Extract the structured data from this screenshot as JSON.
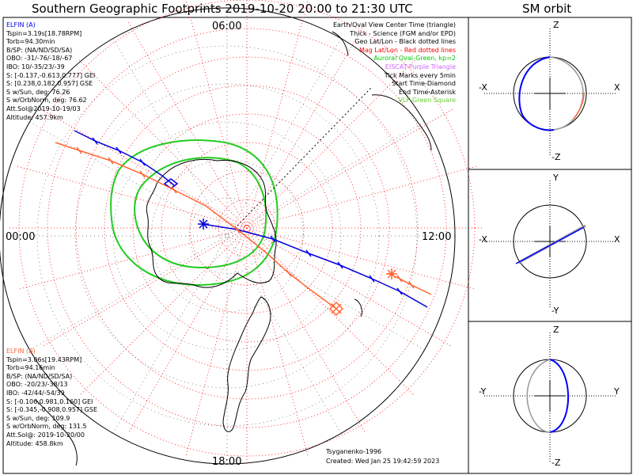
{
  "header": {
    "title": "Southern Geographic Footprints 2019-10-20 20:00 to 21:30 UTC",
    "orbit_title": "SM orbit"
  },
  "map": {
    "hour_labels": {
      "top": "06:00",
      "left": "00:00",
      "right": "12:00",
      "bottom": "18:00"
    }
  },
  "legend": {
    "lines": [
      {
        "text": "Earth/Oval View Center Time (triangle)",
        "color": "#000000"
      },
      {
        "text": "Thick - Science (FGM and/or EPD)",
        "color": "#000000"
      },
      {
        "text": "Geo Lat/Lon - Black dotted lines",
        "color": "#000000"
      },
      {
        "text": "Mag Lat/Lon - Red dotted lines",
        "color": "#ff0000"
      },
      {
        "text": "Auroral Oval-Green, kp=2",
        "color": "#00cc00"
      },
      {
        "text": "EISCAT-Purple Triangle",
        "color": "#cc66ff"
      },
      {
        "text": "Tick Marks every 5min",
        "color": "#000000"
      },
      {
        "text": "Start Time-Diamond",
        "color": "#000000"
      },
      {
        "text": "End Time-Asterisk",
        "color": "#000000"
      },
      {
        "text": "VLF-Green Square",
        "color": "#66cc33"
      }
    ]
  },
  "elfin_a": {
    "name": "ELFIN (A)",
    "color": "#0000ff",
    "lines": [
      "Tspin=3.19s[18.78RPM]",
      "Torb=94.30min",
      "B/SP: (NA/ND/SD/SA)",
      "OBO: -31/-76/-18/-67",
      "IBO: 10/-35/23/-39",
      "S: [-0.137,-0.613,0.777] GEI",
      "S: [0.238,0.182,0.957] GSE",
      "S w/Sun, deg: 76.26",
      "S w/OrbNorm, deg: 76.62",
      "Att.Sol@2019-10-19/03",
      "Altitude: 457.9km"
    ]
  },
  "elfin_b": {
    "name": "ELFIN (B)",
    "color": "#ff6633",
    "lines": [
      "Tspin=3.06s[19.43RPM]",
      "Torb=94.16min",
      "B/SP: (NA/ND/SD/SA)",
      "OBO: -20/23/-38/13",
      "IBO: -42/44/-54/39",
      "S: [-0.106,0.981,0.160] GEI",
      "S: [-0.345,-0.908,0.957] GSE",
      "S w/Sun, deg: 109.9",
      "S w/OrbNorm, deg: 131.5",
      "Att.Sol@: 2019-10-20/00",
      "Altitude: 458.8km"
    ]
  },
  "footer": {
    "model": "Tsyganenko-1996",
    "created": "Created: Wed Jan 25 19:42:59 2023"
  },
  "orbit_panels": {
    "p1": {
      "top": "Z",
      "left": "-X",
      "right": "X",
      "bottom": "-Z"
    },
    "p2": {
      "top": "Y",
      "left": "-X",
      "right": "X",
      "bottom": "-Y"
    },
    "p3": {
      "top": "Z",
      "left": "-Y",
      "right": "Y",
      "bottom": "-Z"
    }
  },
  "colors": {
    "elfin_a": "#0000ff",
    "elfin_b": "#ff6633",
    "auroral_oval": "#00cc00",
    "mag_grid": "#ff0000",
    "geo_grid": "#000000",
    "coastline": "#000000"
  }
}
